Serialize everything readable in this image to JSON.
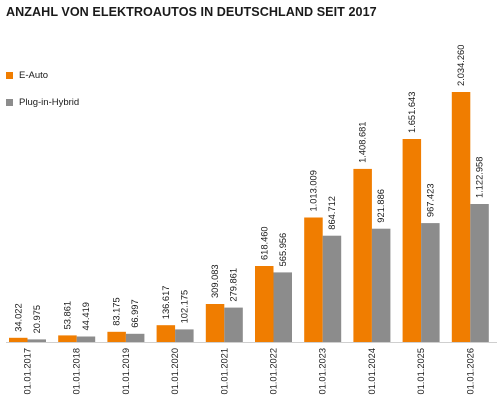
{
  "chart_data": {
    "type": "bar",
    "title": "ANZAHL VON ELEKTROAUTOS IN DEUTSCHLAND SEIT 2017",
    "xlabel": "",
    "ylabel": "",
    "ylim": [
      0,
      2200000
    ],
    "grid": false,
    "legend_position": "top-left",
    "categories": [
      "01.01.2017",
      "01.01.2018",
      "01.01.2019",
      "01.01.2020",
      "01.01.2021",
      "01.01.2022",
      "01.01.2023",
      "01.01.2024",
      "01.01.2025",
      "01.01.2026"
    ],
    "series": [
      {
        "name": "E-Auto",
        "color": "#f07d00",
        "values": [
          34022,
          53861,
          83175,
          136617,
          309083,
          618460,
          1013009,
          1408681,
          1651643,
          2034260
        ],
        "labels": [
          "34.022",
          "53.861",
          "83.175",
          "136.617",
          "309.083",
          "618.460",
          "1.013.009",
          "1.408.681",
          "1.651.643",
          "2.034.260"
        ]
      },
      {
        "name": "Plug-in-Hybrid",
        "color": "#8c8c8c",
        "values": [
          20975,
          44419,
          66997,
          102175,
          279861,
          565956,
          864712,
          921886,
          967423,
          1122958
        ],
        "labels": [
          "20.975",
          "44.419",
          "66.997",
          "102.175",
          "279.861",
          "565.956",
          "864.712",
          "921.886",
          "967.423",
          "1.122.958"
        ]
      }
    ]
  }
}
